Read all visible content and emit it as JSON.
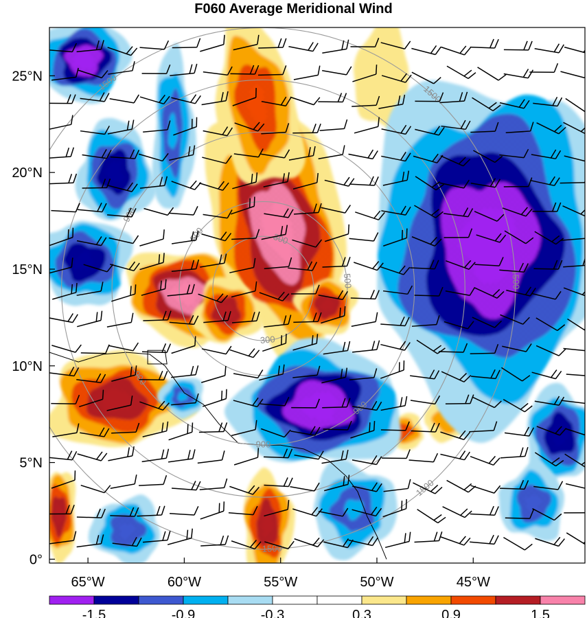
{
  "title": "F060 Average Meridional Wind",
  "map": {
    "x_axis": {
      "ticks": [
        {
          "lon": -65,
          "label": "65°W"
        },
        {
          "lon": -60,
          "label": "60°W"
        },
        {
          "lon": -55,
          "label": "55°W"
        },
        {
          "lon": -50,
          "label": "50°W"
        },
        {
          "lon": -45,
          "label": "45°W"
        }
      ],
      "range": [
        -67.0,
        -39.2
      ]
    },
    "y_axis": {
      "ticks": [
        {
          "lat": 0,
          "label": "0°"
        },
        {
          "lat": 5,
          "label": "5°N"
        },
        {
          "lat": 10,
          "label": "10°N"
        },
        {
          "lat": 15,
          "label": "15°N"
        },
        {
          "lat": 20,
          "label": "20°N"
        },
        {
          "lat": 25,
          "label": "25°N"
        }
      ],
      "range": [
        -0.2,
        27.5
      ]
    },
    "range_rings": {
      "center": {
        "lon": -55.9,
        "lat": 14.0
      },
      "radii_km": [
        300,
        500,
        900,
        1200,
        1500
      ],
      "labels": [
        {
          "text": "300",
          "ring_km": 300,
          "bearing_deg": 20
        },
        {
          "text": "300",
          "ring_km": 300,
          "bearing_deg": 175
        },
        {
          "text": "500",
          "ring_km": 500,
          "bearing_deg": -52
        },
        {
          "text": "500",
          "ring_km": 500,
          "bearing_deg": 85
        },
        {
          "text": "900",
          "ring_km": 900,
          "bearing_deg": -62
        },
        {
          "text": "900",
          "ring_km": 900,
          "bearing_deg": 140
        },
        {
          "text": "900",
          "ring_km": 900,
          "bearing_deg": 180
        },
        {
          "text": "900",
          "ring_km": 900,
          "bearing_deg": 235
        },
        {
          "text": "1500",
          "ring_km": 1500,
          "bearing_deg": -38
        },
        {
          "text": "1500",
          "ring_km": 1500,
          "bearing_deg": 42
        },
        {
          "text": "1500",
          "ring_km": 1500,
          "bearing_deg": 88
        },
        {
          "text": "1500",
          "ring_km": 1500,
          "bearing_deg": 140
        },
        {
          "text": "1500",
          "ring_km": 1500,
          "bearing_deg": 178
        },
        {
          "text": "1500",
          "ring_km": 1500,
          "bearing_deg": 268
        }
      ]
    },
    "field_features": [
      {
        "sign": "positive",
        "lon": -55.1,
        "lat": 17.0,
        "level": 1.8,
        "rx_deg": 2.6,
        "ry_deg": 5.0,
        "rot": -12
      },
      {
        "sign": "positive",
        "lon": -56.2,
        "lat": 23.5,
        "level": 0.9,
        "rx_deg": 1.6,
        "ry_deg": 3.5,
        "rot": -10
      },
      {
        "sign": "positive",
        "lon": -60.0,
        "lat": 13.7,
        "level": 1.6,
        "rx_deg": 2.4,
        "ry_deg": 1.8,
        "rot": 10
      },
      {
        "sign": "positive",
        "lon": -57.8,
        "lat": 12.8,
        "level": 1.2,
        "rx_deg": 1.3,
        "ry_deg": 1.3,
        "rot": 0
      },
      {
        "sign": "positive",
        "lon": -52.6,
        "lat": 13.1,
        "level": 1.3,
        "rx_deg": 1.2,
        "ry_deg": 1.1,
        "rot": 0
      },
      {
        "sign": "positive",
        "lon": -63.5,
        "lat": 8.2,
        "level": 1.3,
        "rx_deg": 2.8,
        "ry_deg": 1.9,
        "rot": 0
      },
      {
        "sign": "positive",
        "lon": -66.5,
        "lat": 2.3,
        "level": 1.4,
        "rx_deg": 0.7,
        "ry_deg": 1.8,
        "rot": 0
      },
      {
        "sign": "positive",
        "lon": -55.7,
        "lat": 1.8,
        "level": 1.2,
        "rx_deg": 1.0,
        "ry_deg": 2.1,
        "rot": 0
      },
      {
        "sign": "positive",
        "lon": -48.7,
        "lat": 6.6,
        "level": 1.0,
        "rx_deg": 0.9,
        "ry_deg": 0.7,
        "rot": 0
      },
      {
        "sign": "positive",
        "lon": -46.3,
        "lat": 7.2,
        "level": 0.8,
        "rx_deg": 1.0,
        "ry_deg": 0.8,
        "rot": 0
      },
      {
        "sign": "positive",
        "lon": -49.7,
        "lat": 25.0,
        "level": 0.5,
        "rx_deg": 1.1,
        "ry_deg": 2.2,
        "rot": 0
      },
      {
        "sign": "negative",
        "lon": -44.2,
        "lat": 16.3,
        "level": -1.8,
        "rx_deg": 4.8,
        "ry_deg": 6.7,
        "rot": 0
      },
      {
        "sign": "negative",
        "lon": -53.0,
        "lat": 7.9,
        "level": -1.6,
        "rx_deg": 3.4,
        "ry_deg": 2.4,
        "rot": 0
      },
      {
        "sign": "negative",
        "lon": -65.2,
        "lat": 25.8,
        "level": -1.6,
        "rx_deg": 1.8,
        "ry_deg": 1.6,
        "rot": 0
      },
      {
        "sign": "negative",
        "lon": -63.6,
        "lat": 20.0,
        "level": -1.3,
        "rx_deg": 1.5,
        "ry_deg": 2.0,
        "rot": 0
      },
      {
        "sign": "negative",
        "lon": -65.2,
        "lat": 15.4,
        "level": -1.3,
        "rx_deg": 1.9,
        "ry_deg": 1.7,
        "rot": 0
      },
      {
        "sign": "negative",
        "lon": -60.6,
        "lat": 22.1,
        "level": -0.9,
        "rx_deg": 0.8,
        "ry_deg": 3.3,
        "rot": 0
      },
      {
        "sign": "negative",
        "lon": -60.1,
        "lat": 8.4,
        "level": -0.9,
        "rx_deg": 0.9,
        "ry_deg": 0.8,
        "rot": 0
      },
      {
        "sign": "negative",
        "lon": -40.5,
        "lat": 6.4,
        "level": -1.3,
        "rx_deg": 1.4,
        "ry_deg": 1.9,
        "rot": 0
      },
      {
        "sign": "negative",
        "lon": -63.0,
        "lat": 1.5,
        "level": -1.0,
        "rx_deg": 1.4,
        "ry_deg": 1.3,
        "rot": 0
      },
      {
        "sign": "negative",
        "lon": -51.2,
        "lat": 2.6,
        "level": -0.9,
        "rx_deg": 1.7,
        "ry_deg": 1.8,
        "rot": 0
      },
      {
        "sign": "negative",
        "lon": -41.9,
        "lat": 2.9,
        "level": -1.0,
        "rx_deg": 1.3,
        "ry_deg": 1.5,
        "rot": 0
      }
    ]
  },
  "colorbar": {
    "levels": [
      -1.8,
      -1.5,
      -1.2,
      -0.9,
      -0.6,
      -0.3,
      0,
      0.3,
      0.6,
      0.9,
      1.2,
      1.5,
      1.8
    ],
    "colors": [
      "#a020f0",
      "#000099",
      "#3d58d0",
      "#00b0f0",
      "#a8dcf2",
      "#ffffff",
      "#ffffff",
      "#fbe78b",
      "#f9a400",
      "#f24a00",
      "#b51d24",
      "#f882aa"
    ],
    "tick_labels": [
      {
        "value": -1.5,
        "label": "-1.5"
      },
      {
        "value": -0.9,
        "label": "-0.9"
      },
      {
        "value": -0.3,
        "label": "-0.3"
      },
      {
        "value": 0.3,
        "label": "0.3"
      },
      {
        "value": 0.9,
        "label": "0.9"
      },
      {
        "value": 1.5,
        "label": "1.5"
      }
    ]
  }
}
